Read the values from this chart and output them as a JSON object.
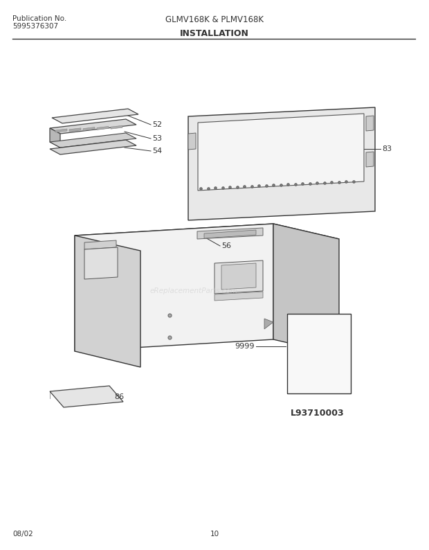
{
  "title_center": "GLMV168K & PLMV168K",
  "title_left_line1": "Publication No.",
  "title_left_line2": "5995376307",
  "section_title": "INSTALLATION",
  "diagram_label": "L93710003",
  "footer_left": "08/02",
  "footer_center": "10",
  "bg_color": "#ffffff",
  "line_color": "#333333",
  "text_color": "#333333",
  "watermark": "eReplacementParts.com"
}
